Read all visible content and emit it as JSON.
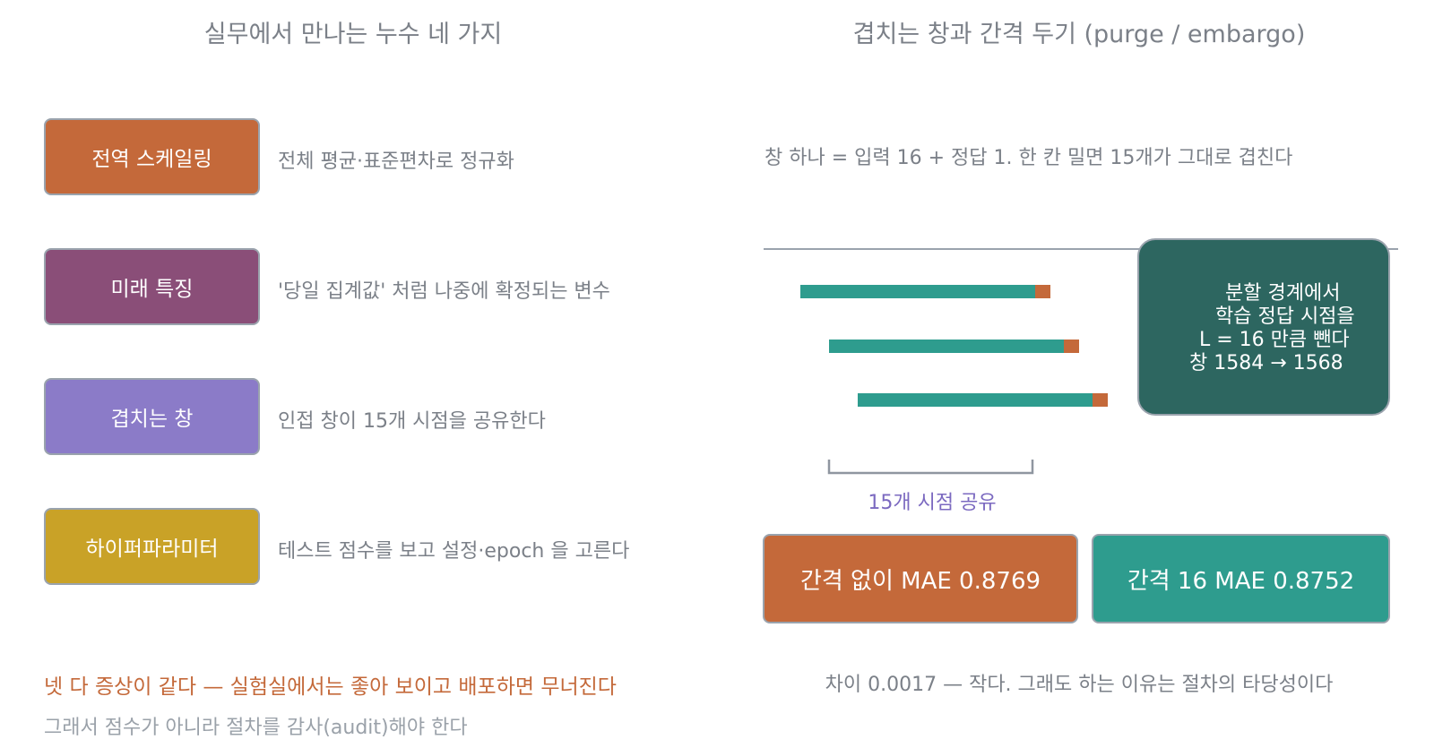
{
  "left": {
    "title": "실무에서 만나는 누수 네 가지",
    "items": [
      {
        "label": "전역 스케일링",
        "desc": "전체 평균·표준편차로 정규화",
        "color": "#c4693a"
      },
      {
        "label": "미래 특징",
        "desc": "'당일 집계값' 처럼 나중에 확정되는 변수",
        "color": "#8a4e78"
      },
      {
        "label": "겹치는 창",
        "desc": "인접 창이 15개 시점을 공유한다",
        "color": "#8b7bc8"
      },
      {
        "label": "하이퍼파라미터",
        "desc": "테스트 점수를 보고 설정·epoch 을 고른다",
        "color": "#c9a227"
      }
    ],
    "footer_warning": "넷 다 증상이 같다 — 실험실에서는 좋아 보이고 배포하면 무너진다",
    "footer_note": "그래서 점수가 아니라 절차를 감사(audit)해야 한다"
  },
  "right": {
    "title": "겹치는 창과 간격 두기 (purge / embargo)",
    "subtitle": "창 하나 = 입력 16 + 정답 1. 한 칸 밀면 15개가 그대로 겹친다",
    "overlap_label": "15개 시점 공유",
    "callout_lines": [
      "분할 경계에서",
      "학습 정답 시점을",
      "L = 16 만큼 뺀다",
      "창 1584 → 1568"
    ],
    "result_no_gap": "간격 없이 MAE 0.8769",
    "result_gap": "간격 16 MAE 0.8752",
    "footer": "차이 0.0017 — 작다. 그래도 하는 이유는 절차의 타당성이다"
  },
  "colors": {
    "input": "#2e9c8e",
    "target": "#c4693a",
    "callout": "#2d6660",
    "overlap_label": "#7b69c0",
    "warning": "#c4693a"
  }
}
